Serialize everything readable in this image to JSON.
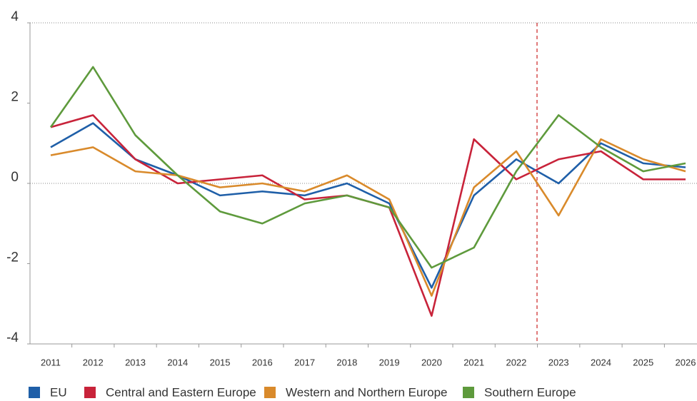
{
  "chart_data": {
    "type": "line",
    "categories": [
      "2011",
      "2012",
      "2013",
      "2014",
      "2015",
      "2016",
      "2017",
      "2018",
      "2019",
      "2020",
      "2021",
      "2022",
      "2023",
      "2024",
      "2025",
      "2026"
    ],
    "series": [
      {
        "name": "EU",
        "color": "#1f5fa8",
        "values": [
          0.9,
          1.5,
          0.6,
          0.2,
          -0.3,
          -0.2,
          -0.3,
          0,
          -0.5,
          -2.6,
          -0.3,
          0.6,
          0,
          1.0,
          0.5,
          0.4
        ]
      },
      {
        "name": "Central and Eastern Europe",
        "color": "#c8233a",
        "values": [
          1.4,
          1.7,
          0.6,
          0,
          0.1,
          0.2,
          -0.4,
          -0.3,
          -0.6,
          -3.3,
          1.1,
          0.1,
          0.6,
          0.8,
          0.1,
          0.1
        ]
      },
      {
        "name": "Western and Northern Europe",
        "color": "#d98a2b",
        "values": [
          0.7,
          0.9,
          0.3,
          0.2,
          -0.1,
          0,
          -0.2,
          0.2,
          -0.4,
          -2.8,
          -0.1,
          0.8,
          -0.8,
          1.1,
          0.6,
          0.3
        ]
      },
      {
        "name": "Southern Europe",
        "color": "#5e9a3c",
        "values": [
          1.4,
          2.9,
          1.2,
          0.2,
          -0.7,
          -1.0,
          -0.5,
          -0.3,
          -0.6,
          -2.1,
          -1.6,
          0.3,
          1.7,
          0.9,
          0.3,
          0.5
        ]
      }
    ],
    "ylim": [
      -4,
      4
    ],
    "yticks": [
      -4,
      -2,
      0,
      2,
      4
    ]
  }
}
